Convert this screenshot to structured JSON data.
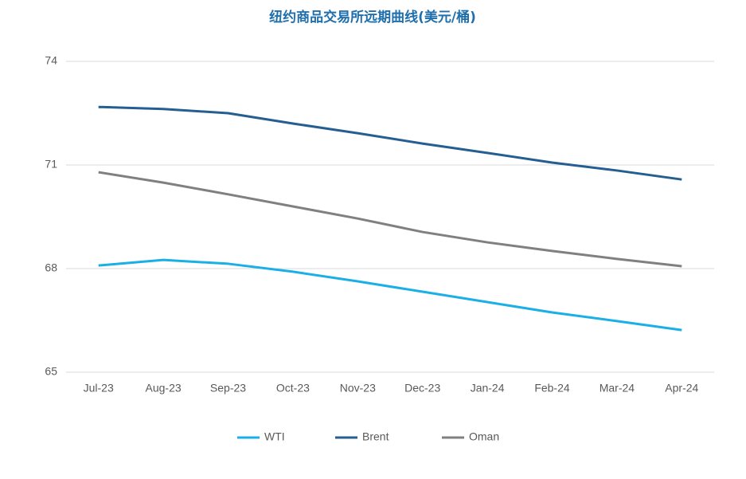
{
  "chart_data": {
    "type": "line",
    "title": "纽约商品交易所远期曲线(美元/桶)",
    "categories": [
      "Jul-23",
      "Aug-23",
      "Sep-23",
      "Oct-23",
      "Nov-23",
      "Dec-23",
      "Jan-24",
      "Feb-24",
      "Mar-24",
      "Apr-24"
    ],
    "series": [
      {
        "name": "WTI",
        "color": "#1aafe6",
        "values": [
          68.09,
          68.25,
          68.14,
          67.91,
          67.63,
          67.33,
          67.03,
          66.73,
          66.48,
          66.22
        ]
      },
      {
        "name": "Brent",
        "color": "#255e91",
        "values": [
          72.68,
          72.62,
          72.5,
          72.2,
          71.92,
          71.62,
          71.35,
          71.07,
          70.84,
          70.58
        ]
      },
      {
        "name": "Oman",
        "color": "#808080",
        "values": [
          70.79,
          70.49,
          70.15,
          69.8,
          69.45,
          69.06,
          68.76,
          68.51,
          68.28,
          68.07
        ]
      }
    ],
    "ylim": [
      65,
      74
    ],
    "yticks": [
      65,
      68,
      71,
      74
    ],
    "grid": true,
    "legend": "bottom"
  }
}
